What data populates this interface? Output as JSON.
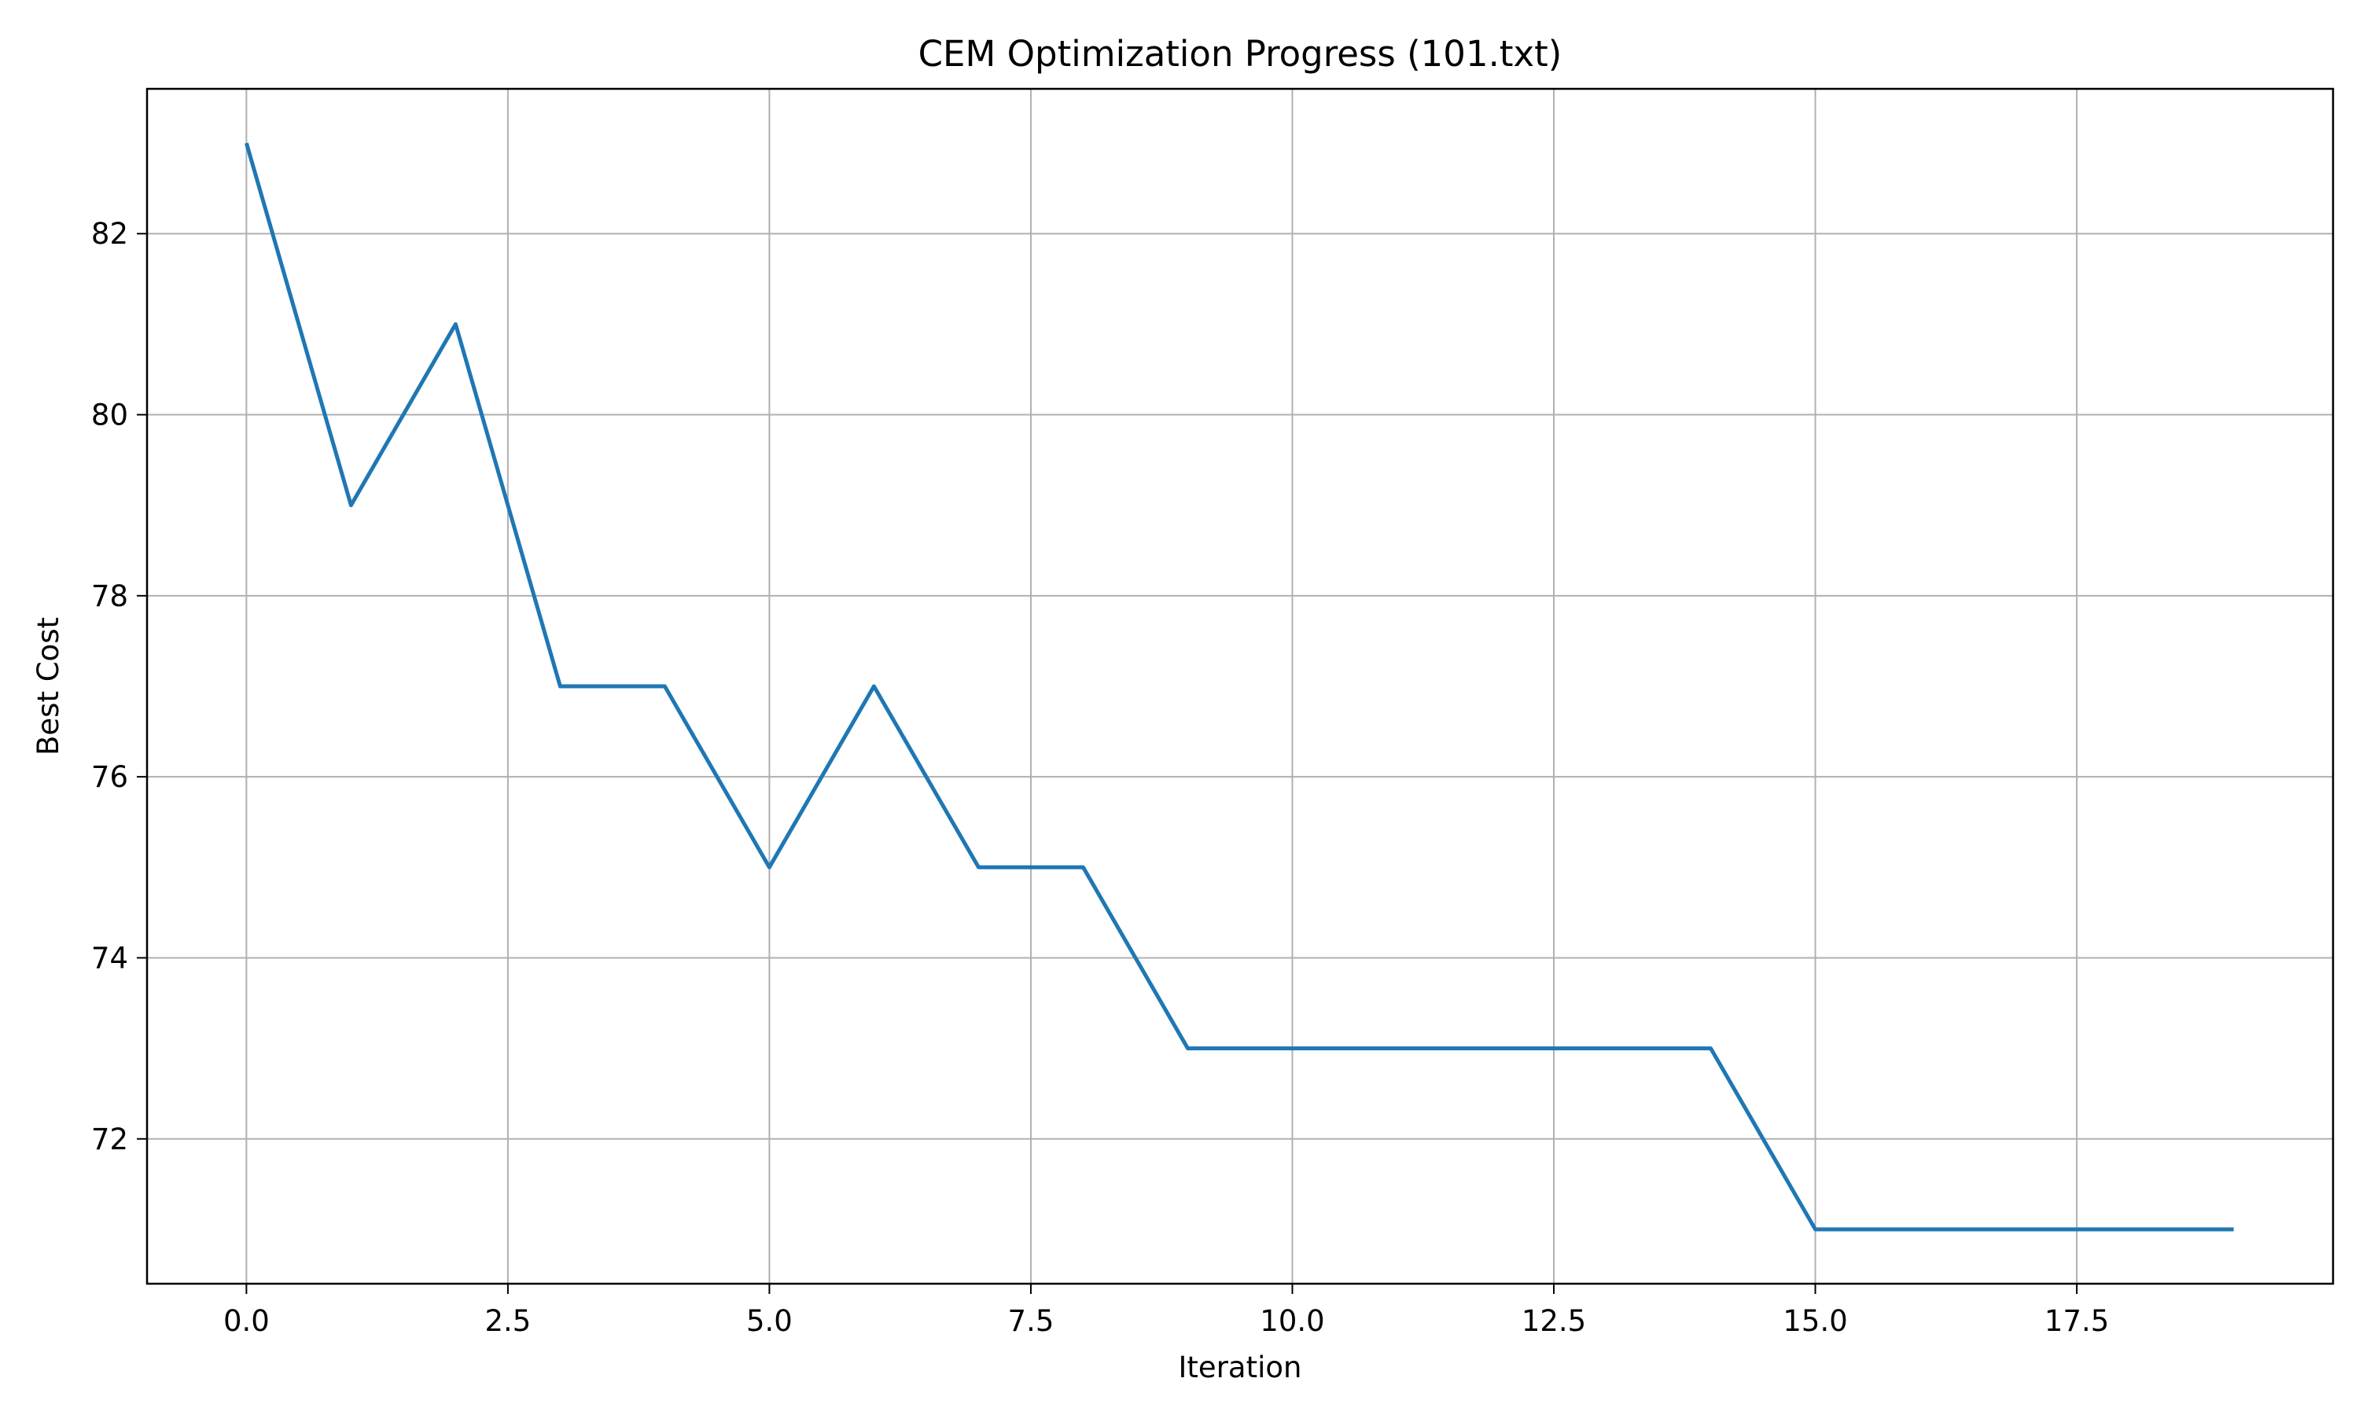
{
  "chart_data": {
    "type": "line",
    "title": "CEM Optimization Progress (101.txt)",
    "xlabel": "Iteration",
    "ylabel": "Best Cost",
    "xlim": [
      -0.95,
      19.95
    ],
    "ylim": [
      70.4,
      83.6
    ],
    "xticks": [
      0.0,
      2.5,
      5.0,
      7.5,
      10.0,
      12.5,
      15.0,
      17.5
    ],
    "xtick_labels": [
      "0.0",
      "2.5",
      "5.0",
      "7.5",
      "10.0",
      "12.5",
      "15.0",
      "17.5"
    ],
    "yticks": [
      72,
      74,
      76,
      78,
      80,
      82
    ],
    "ytick_labels": [
      "72",
      "74",
      "76",
      "78",
      "80",
      "82"
    ],
    "grid": true,
    "series": [
      {
        "color": "#1f77b4",
        "x": [
          0,
          1,
          2,
          3,
          4,
          5,
          6,
          7,
          8,
          9,
          10,
          11,
          12,
          13,
          14,
          15,
          16,
          17,
          18,
          19
        ],
        "y": [
          83,
          79,
          81,
          77,
          77,
          75,
          77,
          75,
          75,
          73,
          73,
          73,
          73,
          73,
          73,
          71,
          71,
          71,
          71,
          71
        ]
      }
    ]
  }
}
